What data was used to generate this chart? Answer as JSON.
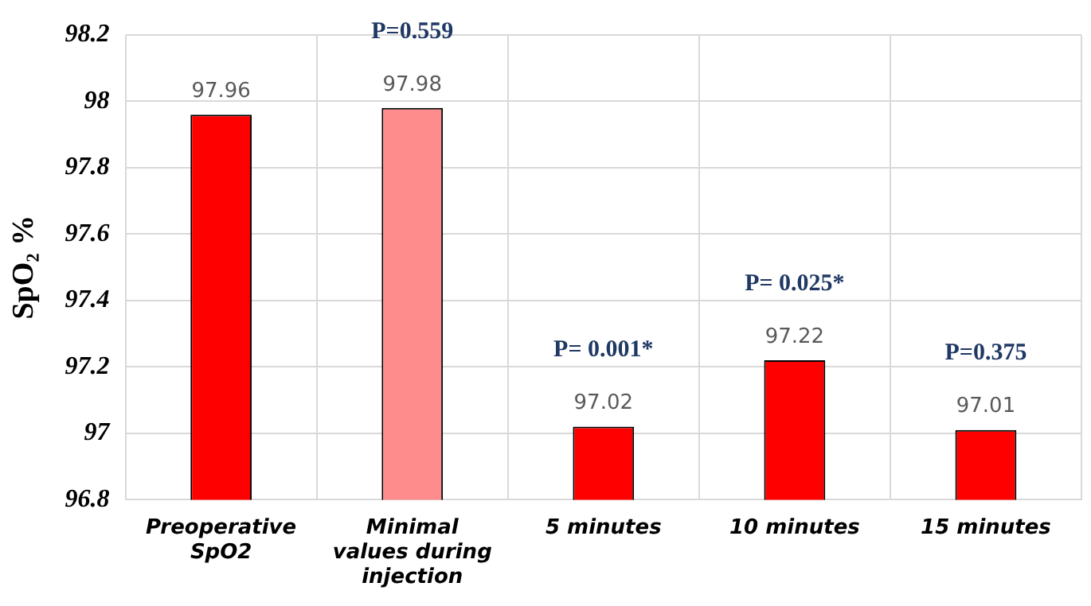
{
  "chart_data": {
    "type": "bar",
    "ylabel": "SpO₂ %",
    "categories": [
      "Preoperative SpO2",
      "Minimal values during injection",
      "5 minutes",
      "10 minutes",
      "15 minutes"
    ],
    "values": [
      97.96,
      97.98,
      97.02,
      97.22,
      97.01
    ],
    "colors": [
      "#ff0000",
      "#ff8c8c",
      "#ff0000",
      "#ff0000",
      "#ff0000"
    ],
    "ylim": [
      96.8,
      98.2
    ],
    "yticks": [
      96.8,
      97,
      97.2,
      97.4,
      97.6,
      97.8,
      98,
      98.2
    ],
    "grid": true,
    "legend": false,
    "data_labels": true,
    "annotations": [
      {
        "text": "P=0.559",
        "x": "Minimal values during injection",
        "y": 97.98
      },
      {
        "text": "P= 0.001*",
        "x": "5 minutes",
        "y": 97.02
      },
      {
        "text": "P= 0.025*",
        "x": "10 minutes",
        "y": 97.22
      },
      {
        "text": "P=0.375",
        "x": "15 minutes",
        "y": 97.01
      }
    ]
  }
}
